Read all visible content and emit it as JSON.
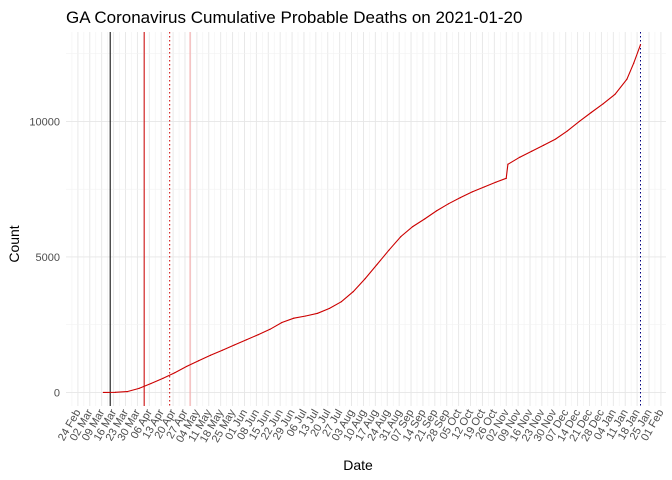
{
  "chart_data": {
    "type": "line",
    "title": "GA Coronavirus Cumulative Probable Deaths on 2021-01-20",
    "xlabel": "Date",
    "ylabel": "Count",
    "x_range": [
      "2020-02-17",
      "2021-02-04"
    ],
    "ylim": [
      -500,
      13300
    ],
    "y_ticks": [
      0,
      5000,
      10000
    ],
    "x_tick_labels": [
      "24 Feb",
      "02 Mar",
      "09 Mar",
      "16 Mar",
      "23 Mar",
      "30 Mar",
      "06 Apr",
      "13 Apr",
      "20 Apr",
      "27 Apr",
      "04 May",
      "11 May",
      "18 May",
      "25 May",
      "01 Jun",
      "08 Jun",
      "15 Jun",
      "22 Jun",
      "29 Jun",
      "06 Jul",
      "13 Jul",
      "20 Jul",
      "27 Jul",
      "03 Aug",
      "10 Aug",
      "17 Aug",
      "24 Aug",
      "31 Aug",
      "07 Sep",
      "14 Sep",
      "21 Sep",
      "28 Sep",
      "05 Oct",
      "12 Oct",
      "19 Oct",
      "26 Oct",
      "02 Nov",
      "09 Nov",
      "16 Nov",
      "23 Nov",
      "30 Nov",
      "07 Dec",
      "14 Dec",
      "21 Dec",
      "28 Dec",
      "04 Jan",
      "11 Jan",
      "18 Jan",
      "25 Jan",
      "01 Feb"
    ],
    "x_tick_dates": [
      "2020-02-24",
      "2020-03-02",
      "2020-03-09",
      "2020-03-16",
      "2020-03-23",
      "2020-03-30",
      "2020-04-06",
      "2020-04-13",
      "2020-04-20",
      "2020-04-27",
      "2020-05-04",
      "2020-05-11",
      "2020-05-18",
      "2020-05-25",
      "2020-06-01",
      "2020-06-08",
      "2020-06-15",
      "2020-06-22",
      "2020-06-29",
      "2020-07-06",
      "2020-07-13",
      "2020-07-20",
      "2020-07-27",
      "2020-08-03",
      "2020-08-10",
      "2020-08-17",
      "2020-08-24",
      "2020-08-31",
      "2020-09-07",
      "2020-09-14",
      "2020-09-21",
      "2020-09-28",
      "2020-10-05",
      "2020-10-12",
      "2020-10-19",
      "2020-10-26",
      "2020-11-02",
      "2020-11-09",
      "2020-11-16",
      "2020-11-23",
      "2020-11-30",
      "2020-12-07",
      "2020-12-14",
      "2020-12-21",
      "2020-12-28",
      "2021-01-04",
      "2021-01-11",
      "2021-01-18",
      "2021-01-25",
      "2021-02-01"
    ],
    "grid": true,
    "series": [
      {
        "color": "#cc0000",
        "points": [
          [
            "2020-03-10",
            0
          ],
          [
            "2020-03-17",
            5
          ],
          [
            "2020-03-24",
            30
          ],
          [
            "2020-03-31",
            150
          ],
          [
            "2020-04-07",
            330
          ],
          [
            "2020-04-14",
            520
          ],
          [
            "2020-04-21",
            730
          ],
          [
            "2020-04-28",
            960
          ],
          [
            "2020-05-05",
            1170
          ],
          [
            "2020-05-12",
            1370
          ],
          [
            "2020-05-19",
            1560
          ],
          [
            "2020-05-26",
            1750
          ],
          [
            "2020-06-02",
            1940
          ],
          [
            "2020-06-09",
            2130
          ],
          [
            "2020-06-16",
            2330
          ],
          [
            "2020-06-23",
            2580
          ],
          [
            "2020-06-30",
            2740
          ],
          [
            "2020-07-07",
            2820
          ],
          [
            "2020-07-14",
            2920
          ],
          [
            "2020-07-21",
            3100
          ],
          [
            "2020-07-28",
            3350
          ],
          [
            "2020-08-04",
            3720
          ],
          [
            "2020-08-11",
            4200
          ],
          [
            "2020-08-18",
            4720
          ],
          [
            "2020-08-25",
            5250
          ],
          [
            "2020-09-01",
            5750
          ],
          [
            "2020-09-08",
            6120
          ],
          [
            "2020-09-15",
            6400
          ],
          [
            "2020-09-22",
            6700
          ],
          [
            "2020-09-29",
            6960
          ],
          [
            "2020-10-06",
            7190
          ],
          [
            "2020-10-13",
            7400
          ],
          [
            "2020-10-20",
            7580
          ],
          [
            "2020-10-27",
            7760
          ],
          [
            "2020-11-02",
            7900
          ],
          [
            "2020-11-03",
            8420
          ],
          [
            "2020-11-10",
            8680
          ],
          [
            "2020-11-17",
            8900
          ],
          [
            "2020-11-24",
            9120
          ],
          [
            "2020-12-01",
            9350
          ],
          [
            "2020-12-08",
            9650
          ],
          [
            "2020-12-15",
            10000
          ],
          [
            "2020-12-22",
            10330
          ],
          [
            "2020-12-29",
            10650
          ],
          [
            "2021-01-05",
            11000
          ],
          [
            "2021-01-12",
            11560
          ],
          [
            "2021-01-16",
            12150
          ],
          [
            "2021-01-20",
            12830
          ]
        ]
      }
    ],
    "vertical_lines": [
      {
        "date": "2020-03-14",
        "color": "#000000",
        "style": "solid"
      },
      {
        "date": "2020-04-03",
        "color": "#cc0000",
        "style": "solid"
      },
      {
        "date": "2020-04-18",
        "color": "#cc0000",
        "style": "dotted"
      },
      {
        "date": "2020-04-30",
        "color": "#f4a0a0",
        "style": "solid"
      },
      {
        "date": "2021-01-20",
        "color": "#000080",
        "style": "dotted"
      }
    ]
  }
}
